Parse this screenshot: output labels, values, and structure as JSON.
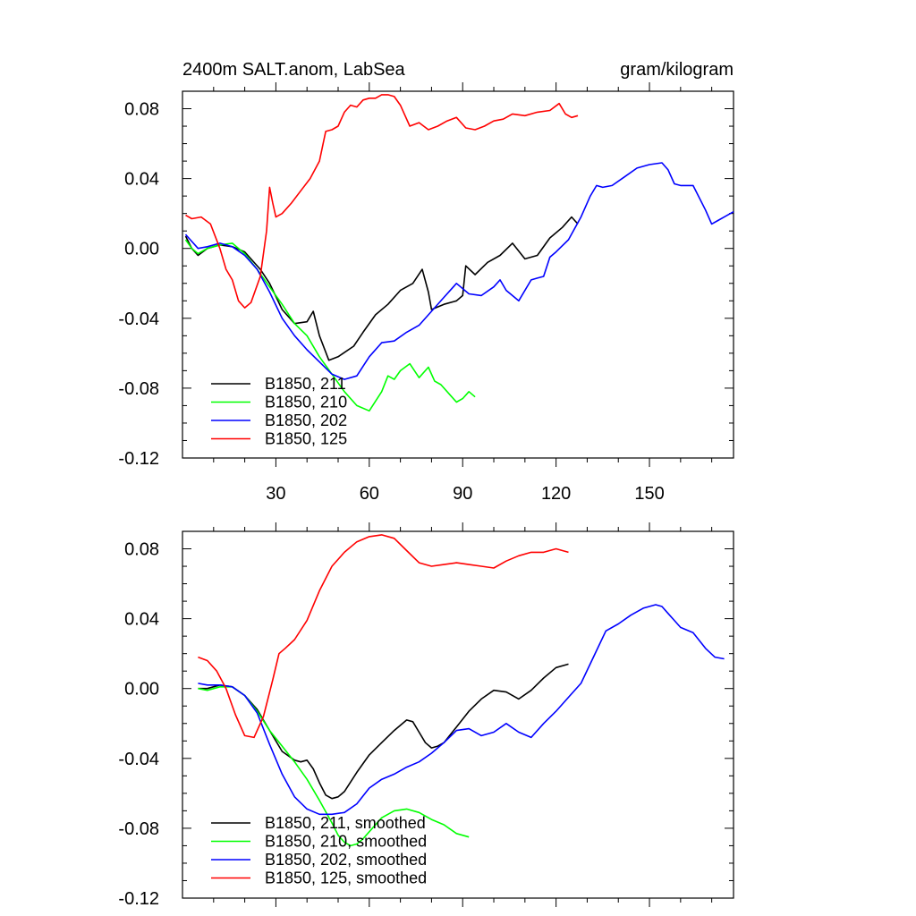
{
  "title_left": "2400m SALT.anom, LabSea",
  "title_right": "gram/kilogram",
  "chart_data": [
    {
      "type": "line",
      "xlim": [
        0,
        177
      ],
      "ylim": [
        -0.12,
        0.09
      ],
      "xticks": [
        30,
        60,
        90,
        120,
        150
      ],
      "xtick_labels": [
        "30",
        "60",
        "90",
        "120",
        "150"
      ],
      "yticks": [
        -0.12,
        -0.08,
        -0.04,
        0.0,
        0.04,
        0.08
      ],
      "ytick_labels": [
        "-0.12",
        "-0.08",
        "-0.04",
        "0.00",
        "0.04",
        "0.08"
      ],
      "legend_position": "bottom-left",
      "series": [
        {
          "name": "B1850, 211",
          "color": "#000000",
          "x": [
            1,
            3,
            5,
            8,
            12,
            16,
            20,
            25,
            28,
            32,
            36,
            40,
            42,
            44,
            47,
            50,
            55,
            58,
            62,
            66,
            70,
            74,
            77,
            79,
            80,
            84,
            88,
            90,
            91,
            94,
            98,
            102,
            106,
            110,
            114,
            118,
            122,
            125,
            127
          ],
          "y": [
            0.007,
            0.0,
            -0.004,
            0.0,
            0.002,
            0.001,
            -0.002,
            -0.012,
            -0.02,
            -0.035,
            -0.043,
            -0.042,
            -0.036,
            -0.05,
            -0.064,
            -0.062,
            -0.056,
            -0.048,
            -0.038,
            -0.032,
            -0.024,
            -0.02,
            -0.012,
            -0.025,
            -0.035,
            -0.032,
            -0.03,
            -0.027,
            -0.01,
            -0.015,
            -0.008,
            -0.004,
            0.003,
            -0.006,
            -0.004,
            0.006,
            0.012,
            0.018,
            0.014
          ]
        },
        {
          "name": "B1850, 210",
          "color": "#00ff00",
          "x": [
            1,
            3,
            5,
            8,
            12,
            16,
            20,
            24,
            28,
            32,
            36,
            40,
            44,
            48,
            52,
            56,
            60,
            64,
            66,
            68,
            70,
            73,
            76,
            79,
            81,
            83,
            86,
            88,
            90,
            92,
            94
          ],
          "y": [
            0.005,
            0.0,
            -0.003,
            0.0,
            0.002,
            0.003,
            -0.003,
            -0.012,
            -0.022,
            -0.032,
            -0.043,
            -0.05,
            -0.062,
            -0.072,
            -0.082,
            -0.09,
            -0.093,
            -0.082,
            -0.073,
            -0.075,
            -0.07,
            -0.066,
            -0.074,
            -0.068,
            -0.076,
            -0.078,
            -0.084,
            -0.088,
            -0.086,
            -0.082,
            -0.085
          ]
        },
        {
          "name": "B1850, 202",
          "color": "#0000ff",
          "x": [
            1,
            3,
            5,
            8,
            12,
            16,
            20,
            24,
            28,
            32,
            36,
            40,
            44,
            48,
            52,
            56,
            60,
            64,
            68,
            72,
            76,
            80,
            84,
            88,
            92,
            96,
            100,
            102,
            104,
            108,
            112,
            114,
            116,
            118,
            120,
            124,
            128,
            131,
            133,
            135,
            138,
            142,
            146,
            150,
            154,
            156,
            158,
            160,
            164,
            168,
            170,
            172,
            174,
            177
          ],
          "y": [
            0.008,
            0.004,
            0.0,
            0.001,
            0.003,
            0.001,
            -0.004,
            -0.012,
            -0.025,
            -0.04,
            -0.05,
            -0.058,
            -0.065,
            -0.072,
            -0.075,
            -0.073,
            -0.062,
            -0.054,
            -0.053,
            -0.048,
            -0.044,
            -0.036,
            -0.028,
            -0.02,
            -0.026,
            -0.027,
            -0.022,
            -0.018,
            -0.024,
            -0.03,
            -0.018,
            -0.017,
            -0.016,
            -0.005,
            -0.002,
            0.005,
            0.018,
            0.03,
            0.036,
            0.035,
            0.036,
            0.041,
            0.046,
            0.048,
            0.049,
            0.045,
            0.037,
            0.036,
            0.036,
            0.022,
            0.014,
            0.016,
            0.018,
            0.021
          ]
        },
        {
          "name": "B1850, 125",
          "color": "#ff0000",
          "x": [
            1,
            3,
            6,
            9,
            12,
            14,
            16,
            18,
            20,
            22,
            25,
            27,
            28,
            29,
            30,
            32,
            35,
            38,
            41,
            44,
            46,
            48,
            50,
            52,
            54,
            56,
            58,
            60,
            62,
            64,
            66,
            68,
            70,
            73,
            76,
            79,
            82,
            85,
            88,
            91,
            94,
            97,
            100,
            103,
            106,
            110,
            114,
            118,
            121,
            123,
            125,
            127
          ],
          "y": [
            0.019,
            0.017,
            0.018,
            0.014,
            0.0,
            -0.012,
            -0.018,
            -0.03,
            -0.034,
            -0.031,
            -0.016,
            0.01,
            0.035,
            0.026,
            0.018,
            0.02,
            0.026,
            0.033,
            0.04,
            0.05,
            0.067,
            0.068,
            0.07,
            0.078,
            0.082,
            0.081,
            0.085,
            0.086,
            0.086,
            0.088,
            0.088,
            0.087,
            0.082,
            0.07,
            0.072,
            0.068,
            0.07,
            0.073,
            0.075,
            0.069,
            0.068,
            0.07,
            0.073,
            0.074,
            0.077,
            0.076,
            0.078,
            0.079,
            0.083,
            0.077,
            0.075,
            0.076
          ]
        }
      ]
    },
    {
      "type": "line",
      "xlim": [
        0,
        177
      ],
      "ylim": [
        -0.12,
        0.09
      ],
      "yticks": [
        -0.12,
        -0.08,
        -0.04,
        0.0,
        0.04,
        0.08
      ],
      "ytick_labels": [
        "-0.12",
        "-0.08",
        "-0.04",
        "0.00",
        "0.04",
        "0.08"
      ],
      "legend_position": "bottom-left",
      "series": [
        {
          "name": "B1850, 211, smoothed",
          "color": "#000000",
          "x": [
            5,
            8,
            12,
            16,
            20,
            24,
            28,
            32,
            36,
            38,
            40,
            42,
            44,
            46,
            48,
            50,
            52,
            56,
            60,
            64,
            68,
            72,
            74,
            76,
            78,
            80,
            82,
            84,
            88,
            92,
            96,
            100,
            104,
            108,
            112,
            116,
            120,
            124
          ],
          "y": [
            0.0,
            0.0,
            0.002,
            0.001,
            -0.004,
            -0.012,
            -0.024,
            -0.036,
            -0.041,
            -0.042,
            -0.041,
            -0.046,
            -0.054,
            -0.061,
            -0.063,
            -0.062,
            -0.059,
            -0.048,
            -0.038,
            -0.031,
            -0.024,
            -0.018,
            -0.019,
            -0.025,
            -0.031,
            -0.034,
            -0.033,
            -0.031,
            -0.022,
            -0.013,
            -0.006,
            -0.001,
            -0.002,
            -0.006,
            -0.001,
            0.006,
            0.012,
            0.014
          ]
        },
        {
          "name": "B1850, 210, smoothed",
          "color": "#00ff00",
          "x": [
            5,
            8,
            12,
            16,
            20,
            24,
            28,
            32,
            36,
            40,
            44,
            48,
            50,
            52,
            54,
            56,
            58,
            60,
            64,
            68,
            72,
            76,
            80,
            84,
            88,
            92
          ],
          "y": [
            0.0,
            -0.001,
            0.001,
            0.001,
            -0.004,
            -0.013,
            -0.024,
            -0.033,
            -0.042,
            -0.052,
            -0.064,
            -0.077,
            -0.084,
            -0.088,
            -0.09,
            -0.089,
            -0.086,
            -0.082,
            -0.074,
            -0.07,
            -0.069,
            -0.071,
            -0.075,
            -0.078,
            -0.083,
            -0.085
          ]
        },
        {
          "name": "B1850, 202, smoothed",
          "color": "#0000ff",
          "x": [
            5,
            8,
            12,
            16,
            20,
            24,
            28,
            32,
            36,
            40,
            44,
            48,
            52,
            56,
            60,
            64,
            68,
            72,
            76,
            80,
            84,
            88,
            92,
            96,
            100,
            104,
            108,
            112,
            116,
            120,
            124,
            128,
            132,
            136,
            140,
            144,
            148,
            152,
            154,
            156,
            158,
            160,
            164,
            168,
            171,
            174
          ],
          "y": [
            0.003,
            0.002,
            0.002,
            0.001,
            -0.004,
            -0.014,
            -0.032,
            -0.049,
            -0.062,
            -0.069,
            -0.072,
            -0.072,
            -0.071,
            -0.066,
            -0.057,
            -0.052,
            -0.049,
            -0.045,
            -0.042,
            -0.037,
            -0.031,
            -0.024,
            -0.023,
            -0.027,
            -0.025,
            -0.02,
            -0.025,
            -0.028,
            -0.02,
            -0.013,
            -0.005,
            0.003,
            0.018,
            0.033,
            0.037,
            0.042,
            0.046,
            0.048,
            0.047,
            0.043,
            0.039,
            0.035,
            0.032,
            0.023,
            0.018,
            0.017
          ]
        },
        {
          "name": "B1850, 125, smoothed",
          "color": "#ff0000",
          "x": [
            5,
            8,
            11,
            14,
            17,
            20,
            23,
            26,
            29,
            31,
            33,
            36,
            40,
            44,
            48,
            52,
            56,
            60,
            64,
            68,
            72,
            76,
            80,
            84,
            88,
            92,
            96,
            100,
            104,
            108,
            112,
            116,
            120,
            124
          ],
          "y": [
            0.018,
            0.016,
            0.01,
            0.0,
            -0.015,
            -0.027,
            -0.028,
            -0.016,
            0.005,
            0.02,
            0.023,
            0.028,
            0.039,
            0.056,
            0.07,
            0.078,
            0.084,
            0.087,
            0.088,
            0.086,
            0.079,
            0.072,
            0.07,
            0.071,
            0.072,
            0.071,
            0.07,
            0.069,
            0.073,
            0.076,
            0.078,
            0.078,
            0.08,
            0.078
          ]
        }
      ]
    }
  ]
}
